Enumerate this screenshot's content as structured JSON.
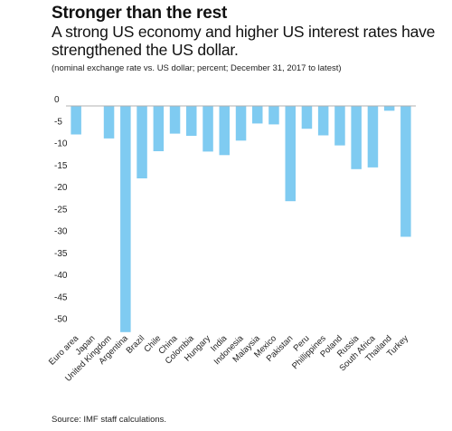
{
  "header": {
    "title": "Stronger than the rest",
    "subtitle": "A strong US economy and higher US interest rates have strengthened the US dollar.",
    "note": "(nominal exchange rate vs. US dollar; percent; December 31, 2017 to latest)"
  },
  "footer": {
    "source": "Source: IMF staff calculations."
  },
  "colors": {
    "bar": "#7fcbf1",
    "zero_line": "#b0b0b0"
  },
  "chart_data": {
    "type": "bar",
    "categories": [
      "Euro area",
      "Japan",
      "United Kingdom",
      "Argentina",
      "Brazil",
      "Chile",
      "China",
      "Colombia",
      "Hungary",
      "India",
      "Indonesia",
      "Malaysia",
      "Mexico",
      "Pakistan",
      "Peru",
      "Phillippines",
      "Poland",
      "Russia",
      "South Africa",
      "Thailand",
      "Turkey"
    ],
    "values": [
      -6.5,
      0,
      -7.4,
      -51.5,
      -16.5,
      -10.3,
      -6.3,
      -6.8,
      -10.4,
      -11.2,
      -7.9,
      -4.0,
      -4.2,
      -21.7,
      -5.2,
      -6.7,
      -9.0,
      -14.4,
      -14.0,
      -1.1,
      -29.8
    ],
    "yticks": [
      0,
      -5,
      -10,
      -15,
      -20,
      -25,
      -30,
      -35,
      -40,
      -45,
      -50
    ],
    "ylim": [
      -53,
      2
    ],
    "grid": false,
    "legend": "none"
  }
}
